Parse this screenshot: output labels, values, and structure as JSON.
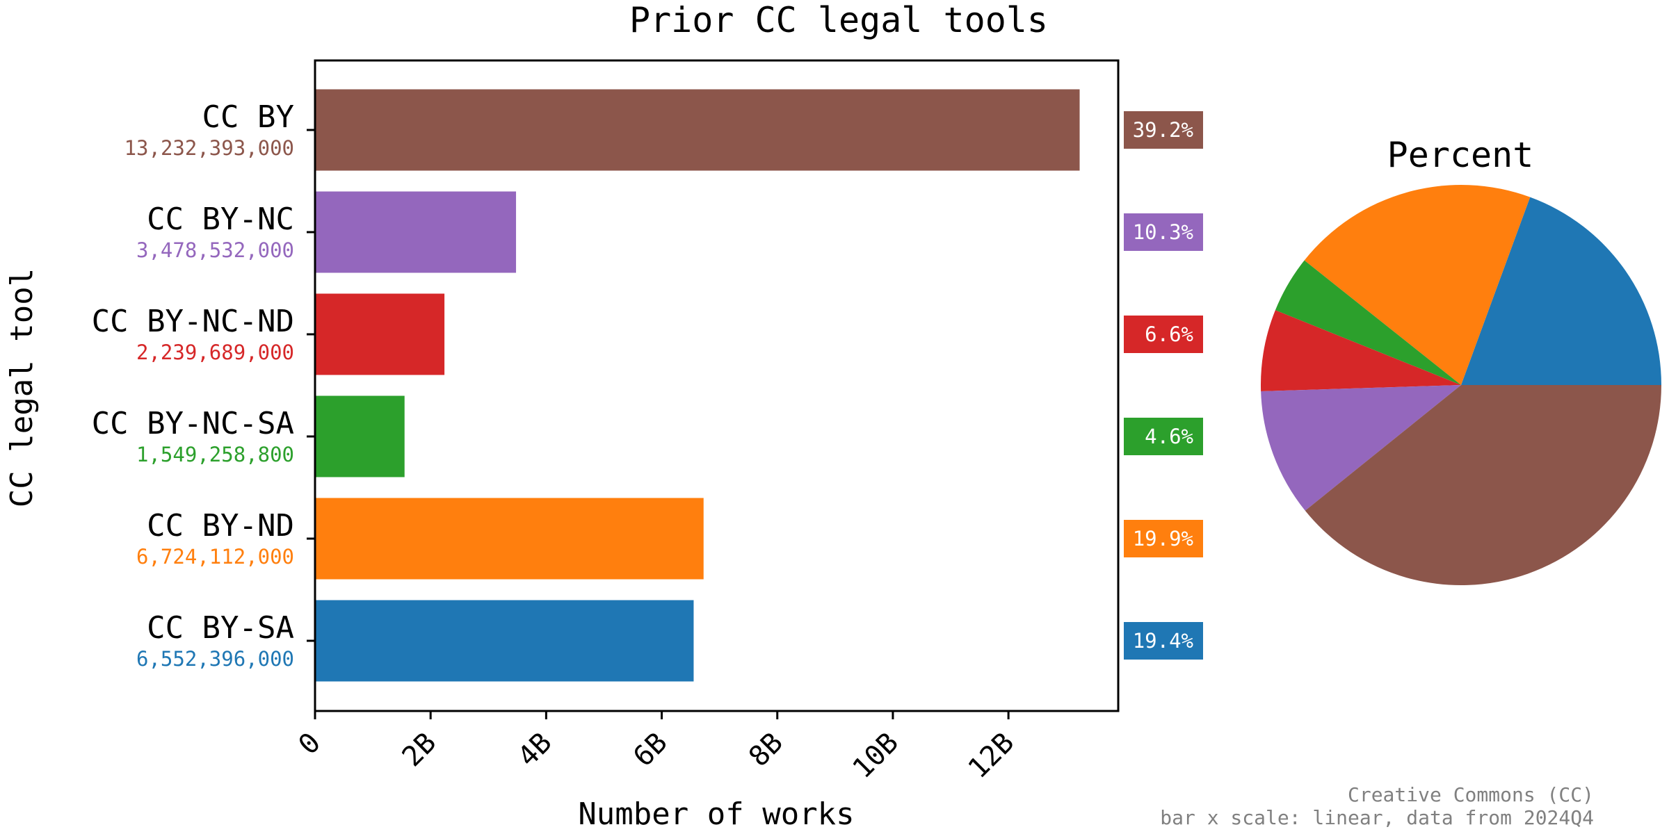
{
  "chart_data": [
    {
      "type": "bar",
      "orientation": "horizontal",
      "title": "Prior CC legal tools",
      "xlabel": "Number of works",
      "ylabel": "CC legal tool",
      "xlim": [
        0,
        13900000000
      ],
      "x_scale": "linear",
      "x_ticks": [
        {
          "value": 0,
          "label": "0"
        },
        {
          "value": 2000000000,
          "label": "2B"
        },
        {
          "value": 4000000000,
          "label": "4B"
        },
        {
          "value": 6000000000,
          "label": "6B"
        },
        {
          "value": 8000000000,
          "label": "8B"
        },
        {
          "value": 10000000000,
          "label": "10B"
        },
        {
          "value": 12000000000,
          "label": "12B"
        }
      ],
      "grid": false,
      "categories": [
        "CC BY",
        "CC BY-NC",
        "CC BY-NC-ND",
        "CC BY-NC-SA",
        "CC BY-ND",
        "CC BY-SA"
      ],
      "values": [
        13232393000,
        3478532000,
        2239689000,
        1549258800,
        6724112000,
        6552396000
      ],
      "value_labels": [
        "13,232,393,000",
        "3,478,532,000",
        "2,239,689,000",
        "1,549,258,800",
        "6,724,112,000",
        "6,552,396,000"
      ],
      "percent_labels": [
        "39.2%",
        "10.3%",
        "6.6%",
        "4.6%",
        "19.9%",
        "19.4%"
      ],
      "colors": [
        "#8c564b",
        "#9467bd",
        "#d62728",
        "#2ca02c",
        "#ff7f0e",
        "#1f77b4"
      ]
    },
    {
      "type": "pie",
      "title": "Percent",
      "values": [
        19.4,
        19.9,
        4.6,
        6.6,
        10.3,
        39.2
      ],
      "colors": [
        "#1f77b4",
        "#ff7f0e",
        "#2ca02c",
        "#d62728",
        "#9467bd",
        "#8c564b"
      ],
      "start_angle_degrees": 0,
      "direction": "counterclockwise"
    }
  ],
  "footer": {
    "line1": "Creative Commons (CC)",
    "line2": "bar x scale: linear, data from 2024Q4"
  }
}
